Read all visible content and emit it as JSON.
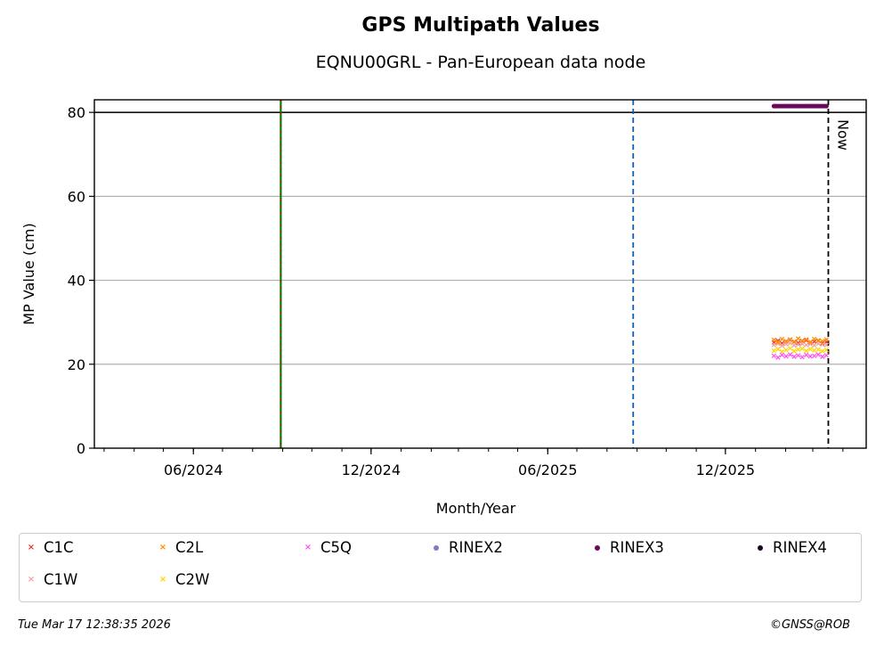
{
  "chart_data": {
    "type": "scatter",
    "title": "GPS Multipath Values",
    "subtitle": "EQNU00GRL - Pan-European data node",
    "xlabel": "Month/Year",
    "ylabel": "MP Value (cm)",
    "xlim": [
      "2024-02-20",
      "2026-04-25"
    ],
    "ylim": [
      0,
      83
    ],
    "x_ticks": [
      "06/2024",
      "12/2024",
      "06/2025",
      "12/2025"
    ],
    "x_tick_dates": [
      "2024-06-01",
      "2024-12-01",
      "2025-06-01",
      "2025-12-01"
    ],
    "y_ticks": [
      0,
      20,
      40,
      60,
      80
    ],
    "grid": "horizontal",
    "reference_lines": [
      {
        "date": "2024-08-30",
        "color": "#008000",
        "style": "dash-dot",
        "overlay_color": "#cc0000"
      },
      {
        "date": "2025-08-28",
        "color": "#1060b0",
        "style": "dashed"
      },
      {
        "date": "2026-03-17",
        "color": "#000000",
        "style": "dashed",
        "label": "Now"
      }
    ],
    "threshold_line": {
      "value": 80,
      "color": "#000000"
    },
    "series": [
      {
        "name": "C1C",
        "marker": "x",
        "color": "#e8392b",
        "x_range": [
          "2026-01-20",
          "2026-03-15"
        ],
        "values": [
          25.2,
          25.6,
          25.0,
          25.4,
          25.8,
          25.3,
          25.1,
          25.5,
          25.7,
          25.2,
          25.4,
          25.6,
          25.0,
          25.3
        ]
      },
      {
        "name": "C1W",
        "marker": "x",
        "color": "#f4a0a0",
        "x_range": [
          "2026-01-20",
          "2026-03-15"
        ],
        "values": [
          24.6,
          24.9,
          24.4,
          24.8,
          25.0,
          24.5,
          24.7,
          24.9,
          24.6,
          24.8,
          24.5,
          24.9,
          24.7,
          24.6
        ]
      },
      {
        "name": "C2L",
        "marker": "x",
        "color": "#ff8c00",
        "x_range": [
          "2026-01-20",
          "2026-03-15"
        ],
        "values": [
          25.8,
          25.3,
          26.0,
          25.5,
          25.9,
          25.4,
          26.1,
          25.6,
          25.9,
          25.3,
          26.0,
          25.7,
          25.5,
          25.9
        ]
      },
      {
        "name": "C2W",
        "marker": "x",
        "color": "#ffd700",
        "x_range": [
          "2026-01-20",
          "2026-03-15"
        ],
        "values": [
          23.2,
          23.6,
          23.0,
          23.4,
          23.8,
          23.1,
          23.5,
          23.7,
          23.2,
          23.6,
          23.3,
          23.5,
          23.1,
          23.4
        ]
      },
      {
        "name": "C5Q",
        "marker": "x",
        "color": "#ff55ee",
        "x_range": [
          "2026-01-20",
          "2026-03-15"
        ],
        "values": [
          22.0,
          21.6,
          22.2,
          21.9,
          22.3,
          21.8,
          22.1,
          21.7,
          22.2,
          21.9,
          22.0,
          22.3,
          21.8,
          22.1
        ]
      },
      {
        "name": "RINEX2",
        "marker": "dot",
        "color": "#8878c0",
        "x_range": [],
        "values": []
      },
      {
        "name": "RINEX3",
        "marker": "dot",
        "color": "#6a0a5a",
        "x_range": [
          "2026-01-20",
          "2026-03-15"
        ],
        "values": [
          81.5,
          81.5,
          81.5,
          81.5,
          81.5,
          81.5,
          81.5,
          81.5,
          81.5,
          81.5,
          81.5,
          81.5,
          81.5,
          81.5,
          81.5,
          81.5,
          81.5,
          81.5,
          81.5,
          81.5,
          81.5,
          81.5,
          81.5,
          81.5,
          81.5,
          81.5,
          81.5,
          81.5
        ]
      },
      {
        "name": "RINEX4",
        "marker": "dot",
        "color": "#1a0820",
        "x_range": [],
        "values": []
      }
    ]
  },
  "legend": {
    "items": [
      {
        "label": "C1C",
        "marker": "×",
        "color": "#e8392b"
      },
      {
        "label": "C2L",
        "marker": "×",
        "color": "#ff8c00"
      },
      {
        "label": "C5Q",
        "marker": "×",
        "color": "#ff55ee"
      },
      {
        "label": "RINEX2",
        "marker": "dot",
        "color": "#8878c0"
      },
      {
        "label": "RINEX3",
        "marker": "dot",
        "color": "#6a0a5a"
      },
      {
        "label": "RINEX4",
        "marker": "dot",
        "color": "#1a0820"
      },
      {
        "label": "C1W",
        "marker": "×",
        "color": "#f4a0a0"
      },
      {
        "label": "C2W",
        "marker": "×",
        "color": "#ffd700"
      }
    ]
  },
  "footer": {
    "timestamp": "Tue Mar 17 12:38:35 2026",
    "credit": "©GNSS@ROB"
  }
}
